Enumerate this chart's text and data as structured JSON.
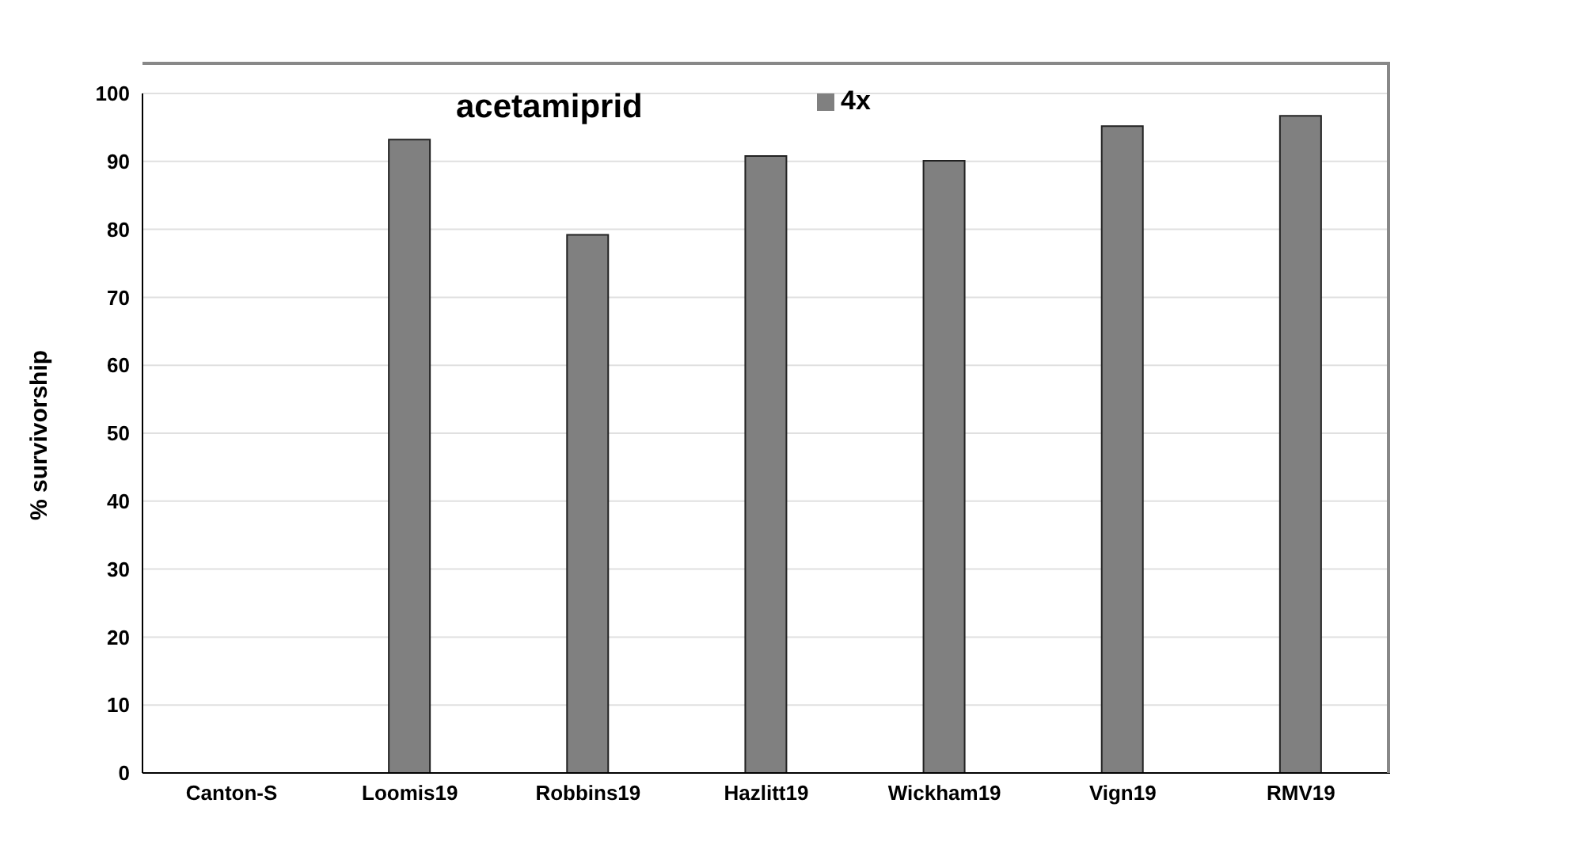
{
  "chart_data": {
    "type": "bar",
    "title": "acetamiprid",
    "ylabel": "% survivorship",
    "categories": [
      "Canton-S",
      "Loomis19",
      "Robbins19",
      "Hazlitt19",
      "Wickham19",
      "Vign19",
      "RMV19"
    ],
    "series": [
      {
        "name": "4x",
        "color": "#808080",
        "values": [
          0,
          93.2,
          79.2,
          90.8,
          90.1,
          95.2,
          96.7
        ]
      }
    ],
    "ylim": [
      0,
      100
    ],
    "yticks": [
      0,
      10,
      20,
      30,
      40,
      50,
      60,
      70,
      80,
      90,
      100
    ],
    "grid": "y",
    "legend": "top"
  }
}
